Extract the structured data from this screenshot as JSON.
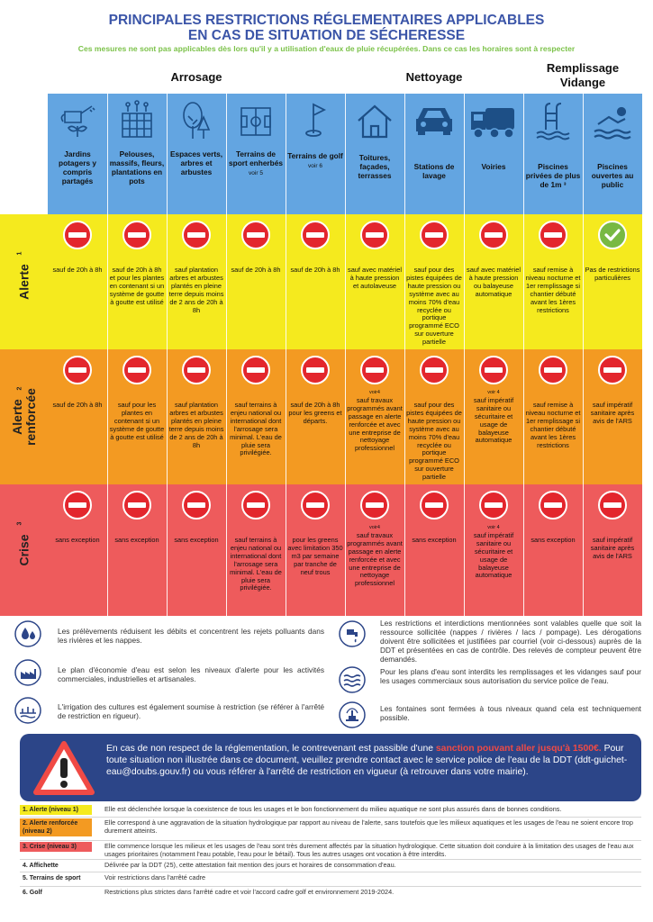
{
  "title": {
    "line1": "PRINCIPALES RESTRICTIONS RÉGLEMENTAIRES APPLICABLES",
    "line2": "EN CAS DE SITUATION DE SÉCHERESSE",
    "subtitle": "Ces mesures ne sont pas applicables dès lors qu'il y a utilisation d'eaux de pluie récupérées. Dans ce cas les horaires sont à respecter"
  },
  "groups": {
    "arrosage": "Arrosage",
    "nettoyage": "Nettoyage",
    "remplissage1": "Remplissage",
    "remplissage2": "Vidange"
  },
  "columns": [
    {
      "label": "Jardins potagers y compris partagés",
      "note": "",
      "icon": "watering-can-icon"
    },
    {
      "label": "Pelouses, massifs, fleurs, plantations en pots",
      "note": "",
      "icon": "flower-bed-icon"
    },
    {
      "label": "Espaces verts, arbres et arbustes",
      "note": "",
      "icon": "trees-icon"
    },
    {
      "label": "Terrains de sport enherbés",
      "note": "voir 5",
      "icon": "sport-field-icon"
    },
    {
      "label": "Terrains de golf",
      "note": "voir 6",
      "icon": "golf-flag-icon"
    },
    {
      "label": "Toitures, façades, terrasses",
      "note": "",
      "icon": "house-icon"
    },
    {
      "label": "Stations de lavage",
      "note": "",
      "icon": "car-icon"
    },
    {
      "label": "Voiries",
      "note": "",
      "icon": "street-sweeper-icon"
    },
    {
      "label": "Piscines privées de plus de 1m ³",
      "note": "",
      "icon": "pool-ladder-icon"
    },
    {
      "label": "Piscines ouvertes au public",
      "note": "",
      "icon": "swimmer-icon"
    }
  ],
  "rows": [
    {
      "name": "Alerte",
      "num": "1",
      "color": "#f5ea1e",
      "cells": [
        {
          "status": "stop",
          "note": "",
          "text": "sauf de 20h à 8h"
        },
        {
          "status": "stop",
          "note": "",
          "text": "sauf de 20h à 8h et pour les plantes en contenant si un système de goutte à goutte est utilisé"
        },
        {
          "status": "stop",
          "note": "",
          "text": "sauf plantation arbres et arbustes plantés en pleine terre depuis moins de 2 ans de 20h à 8h"
        },
        {
          "status": "stop",
          "note": "",
          "text": "sauf de 20h à 8h"
        },
        {
          "status": "stop",
          "note": "",
          "text": "sauf de 20h à 8h"
        },
        {
          "status": "stop",
          "note": "",
          "text": "sauf avec matériel à haute pression et autolaveuse"
        },
        {
          "status": "stop",
          "note": "",
          "text": "sauf pour des pistes équipées de haute pression ou système avec au moins 70% d'eau recyclée ou portique programmé ECO sur ouverture partielle"
        },
        {
          "status": "stop",
          "note": "",
          "text": "sauf avec matériel à haute pression ou balayeuse automatique"
        },
        {
          "status": "stop",
          "note": "",
          "text": "sauf remise à niveau nocturne et 1er remplissage si chantier débuté avant les 1ères restrictions"
        },
        {
          "status": "ok",
          "note": "",
          "text": "Pas de restrictions particulières"
        }
      ]
    },
    {
      "name": "Alerte renforcée",
      "num": "2",
      "color": "#f39a22",
      "cells": [
        {
          "status": "stop",
          "note": "",
          "text": "sauf de 20h à 8h"
        },
        {
          "status": "stop",
          "note": "",
          "text": "sauf pour les plantes en contenant si un système de goutte à goutte est utilisé"
        },
        {
          "status": "stop",
          "note": "",
          "text": "sauf plantation arbres et arbustes plantés en pleine terre depuis moins de 2 ans de 20h à 8h"
        },
        {
          "status": "stop",
          "note": "",
          "text": "sauf terrains à enjeu national ou international dont l'arrosage sera minimal. L'eau de pluie sera privilégiée."
        },
        {
          "status": "stop",
          "note": "",
          "text": "sauf de 20h à 8h pour les greens et départs."
        },
        {
          "status": "stop",
          "note": "voir4",
          "text": "sauf travaux programmés avant passage en alerte renforcée et avec une entreprise de nettoyage professionnel"
        },
        {
          "status": "stop",
          "note": "",
          "text": "sauf pour des pistes équipées de haute pression ou système avec au moins 70% d'eau recyclée ou portique programmé ECO sur ouverture partielle"
        },
        {
          "status": "stop",
          "note": "voir 4",
          "text": "sauf impératif sanitaire ou sécuritaire et usage de balayeuse automatique"
        },
        {
          "status": "stop",
          "note": "",
          "text": "sauf remise à niveau nocturne et 1er remplissage si chantier débuté avant les 1ères restrictions"
        },
        {
          "status": "stop",
          "note": "",
          "text": "sauf impératif sanitaire après avis de l'ARS"
        }
      ]
    },
    {
      "name": "Crise",
      "num": "3",
      "color": "#ee5b5c",
      "cells": [
        {
          "status": "stop",
          "note": "",
          "text": "sans exception"
        },
        {
          "status": "stop",
          "note": "",
          "text": "sans exception"
        },
        {
          "status": "stop",
          "note": "",
          "text": "sans exception"
        },
        {
          "status": "stop",
          "note": "",
          "text": "sauf terrains à enjeu national ou international dont l'arrosage sera minimal. L'eau de pluie sera privilégiée."
        },
        {
          "status": "stop",
          "note": "",
          "text": "pour les greens avec limitation 350 m3 par semaine par tranche de neuf trous"
        },
        {
          "status": "stop",
          "note": "voir4",
          "text": "sauf travaux programmés avant passage en alerte renforcée et avec une entreprise de nettoyage professionnel"
        },
        {
          "status": "stop",
          "note": "",
          "text": "sans exception"
        },
        {
          "status": "stop",
          "note": "voir 4",
          "text": "sauf impératif sanitaire ou sécuritaire et usage de balayeuse automatique"
        },
        {
          "status": "stop",
          "note": "",
          "text": "sans exception"
        },
        {
          "status": "stop",
          "note": "",
          "text": "sauf impératif sanitaire après avis de l'ARS"
        }
      ]
    }
  ],
  "info_left": [
    {
      "icon": "water-drops-icon",
      "text": "Les prélèvements réduisent les débits et concentrent les rejets polluants dans les rivières et les nappes."
    },
    {
      "icon": "factory-icon",
      "text": "Le plan d'économie d'eau est selon les niveaux d'alerte pour les activités commerciales, industrielles et artisanales."
    },
    {
      "icon": "irrigation-icon",
      "text": "L'irrigation des cultures est également soumise à restriction (se référer à l'arrêté de restriction en rigueur)."
    }
  ],
  "info_right": [
    {
      "icon": "tap-icon",
      "text": "Les restrictions et interdictions mentionnées sont valables quelle que soit la ressource sollicitée (nappes / rivières / lacs / pompage). Les dérogations doivent être sollicitées et justifiées par courriel (voir ci-dessous) auprès de la DDT et présentées en cas de contrôle. Des relevés de compteur peuvent être demandés."
    },
    {
      "icon": "waves-icon",
      "text": "Pour les plans d'eau sont interdits les remplissages et les vidanges sauf pour les usages commerciaux sous autorisation du service police de l'eau."
    },
    {
      "icon": "fountain-icon",
      "text": "Les fontaines sont fermées à tous niveaux quand cela est techniquement possible."
    }
  ],
  "warning": {
    "before": "En cas de non respect de la réglementation, le contrevenant est passible d'une ",
    "highlight": "sanction pouvant aller jusqu'à 1500€.",
    "after": " Pour toute situation non illustrée dans ce document, veuillez prendre contact avec le service police de l'eau de la DDT (ddt-guichet-eau@doubs.gouv.fr) ou vous référer à l'arrêté de restriction en vigueur (à retrouver dans votre mairie)."
  },
  "legend": [
    {
      "key": "1. Alerte (niveau 1)",
      "color": "#f5ea1e",
      "text": "Elle est déclenchée lorsque la coexistence de tous les usages et le bon fonctionnement du milieu aquatique ne sont plus assurés dans de bonnes conditions."
    },
    {
      "key": "2. Alerte renforcée (niveau 2)",
      "color": "#f39a22",
      "text": "Elle correspond à une aggravation de la situation hydrologique par rapport au niveau de l'alerte, sans toutefois que les milieux aquatiques et les usages de l'eau ne soient encore trop durement atteints."
    },
    {
      "key": "3. Crise (niveau 3)",
      "color": "#ee5b5c",
      "text": "Elle commence lorsque les milieux et les usages de l'eau sont très durement affectés par la situation hydrologique. Cette situation doit conduire à la limitation des usages de l'eau aux usages prioritaires (notamment l'eau potable, l'eau pour le bétail). Tous les autres usages ont vocation à être interdits."
    },
    {
      "key": "4. Affichette",
      "color": "",
      "text": "Délivrée par la DDT (25), cette attestation fait mention des jours et horaires de consommation d'eau."
    },
    {
      "key": "5. Terrains de sport",
      "color": "",
      "text": "Voir restrictions dans l'arrêté cadre"
    },
    {
      "key": "6. Golf",
      "color": "",
      "text": "Restrictions plus strictes dans l'arrêté cadre et voir l'accord cadre golf et environnement 2019-2024."
    }
  ]
}
